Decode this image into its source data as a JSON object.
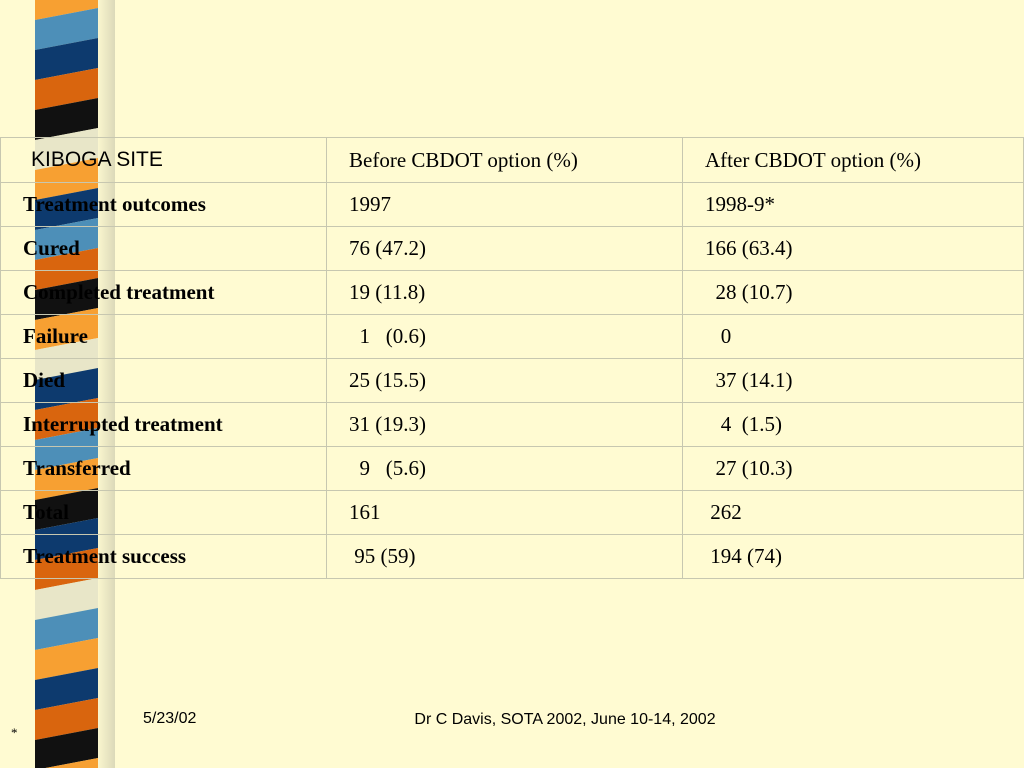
{
  "table": {
    "header": {
      "site": "KIBOGA SITE",
      "before": "Before CBDOT option (%)",
      "after": "After CBDOT option (%)"
    },
    "rows": [
      {
        "label": "Treatment outcomes",
        "before": "1997",
        "after": "1998-9*"
      },
      {
        "label": "Cured",
        "before": "76 (47.2)",
        "after": "166 (63.4)"
      },
      {
        "label": "Completed treatment",
        "before": "19 (11.8)",
        "after": "  28 (10.7)"
      },
      {
        "label": "Failure",
        "before": "  1   (0.6)",
        "after": "   0"
      },
      {
        "label": "Died",
        "before": "25 (15.5)",
        "after": "  37 (14.1)"
      },
      {
        "label": "Interrupted treatment",
        "before": "31 (19.3)",
        "after": "   4  (1.5)"
      },
      {
        "label": "Transferred",
        "before": "  9   (5.6)",
        "after": "  27 (10.3)"
      },
      {
        "label": "Total",
        "before": "161",
        "after": " 262"
      },
      {
        "label": "Treatment success",
        "before": " 95 (59)",
        "after": " 194 (74)"
      }
    ]
  },
  "footer": {
    "date": "5/23/02",
    "credit": "Dr C Davis, SOTA 2002, June 10-14, 2002",
    "mark": "*"
  },
  "colors": {
    "background": "#fffbd2",
    "stripes": [
      "#f7a032",
      "#4d8fb8",
      "#0d3a6e",
      "#d9650e",
      "#111111",
      "#e8e6c8"
    ]
  }
}
